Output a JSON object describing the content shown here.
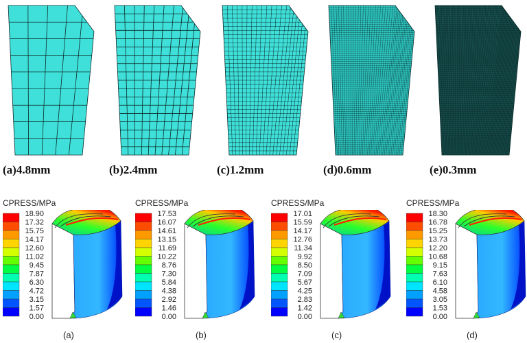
{
  "mesh_panels": [
    {
      "caption": "(a)4.8mm",
      "cols": 5,
      "rows": 9,
      "fill": "#40e0da"
    },
    {
      "caption": "(b)2.4mm",
      "cols": 10,
      "rows": 18,
      "fill": "#40e0da"
    },
    {
      "caption": "(c)1.2mm",
      "cols": 20,
      "rows": 36,
      "fill": "#40e0da"
    },
    {
      "caption": "(d)0.6mm",
      "cols": 40,
      "rows": 72,
      "fill": "#2ec7c2"
    },
    {
      "caption": "(e)0.3mm",
      "cols": 80,
      "rows": 144,
      "fill": "#1a5a58"
    }
  ],
  "contour_panels": [
    {
      "title": "CPRESS/MPa",
      "caption": "(a)",
      "scale": [
        "18.90",
        "17.32",
        "15.75",
        "14.17",
        "12.60",
        "11.02",
        "9.45",
        "7.87",
        "6.30",
        "4.72",
        "3.15",
        "1.57",
        "0.00"
      ]
    },
    {
      "title": "CPRESS/MPa",
      "caption": "(b)",
      "scale": [
        "17.53",
        "16.07",
        "14.61",
        "13.15",
        "11.69",
        "10.22",
        "8.76",
        "7.30",
        "5.84",
        "4.38",
        "2.92",
        "1.46",
        "0.00"
      ]
    },
    {
      "title": "CPRESS/MPa",
      "caption": "(c)",
      "scale": [
        "17.01",
        "15.59",
        "14.17",
        "12.76",
        "11.34",
        "9.92",
        "8.50",
        "7.09",
        "5.67",
        "4.25",
        "2.83",
        "1.42",
        "0.00"
      ]
    },
    {
      "title": "CPRESS/MPa",
      "caption": "(d)",
      "scale": [
        "18.30",
        "16.78",
        "15.25",
        "13.73",
        "12.20",
        "10.68",
        "9.15",
        "7.63",
        "6.10",
        "4.58",
        "3.05",
        "1.53",
        "0.00"
      ]
    }
  ],
  "colorbar": [
    "#ff0000",
    "#ff4d00",
    "#ff9900",
    "#ffd400",
    "#d4ff00",
    "#66ff00",
    "#00ff40",
    "#00ffb0",
    "#00e5ff",
    "#00a0ff",
    "#0055ff",
    "#0000ff"
  ]
}
